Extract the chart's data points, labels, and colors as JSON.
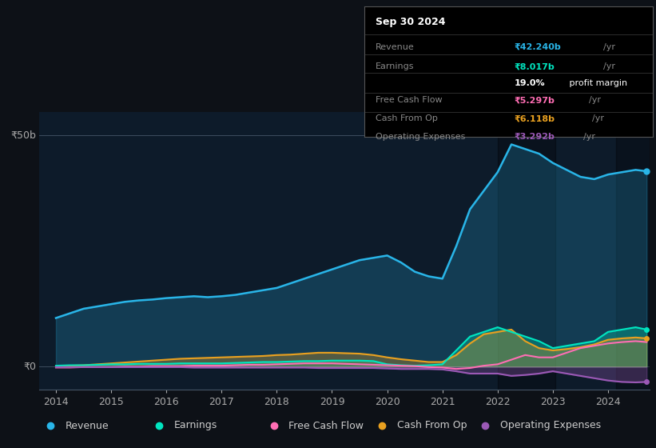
{
  "background_color": "#0d1117",
  "plot_bg_color": "#0d1b2a",
  "tooltip": {
    "date": "Sep 30 2024",
    "revenue_val": "₹42.240b",
    "earnings_val": "₹8.017b",
    "profit_margin": "19.0%",
    "fcf_val": "₹5.297b",
    "cashop_val": "₹6.118b",
    "opex_val": "₹3.292b"
  },
  "ylabel_50b": "₹50b",
  "ylabel_0": "₹0",
  "colors": {
    "revenue": "#29b5e8",
    "earnings": "#00e5c0",
    "fcf": "#ff6eb4",
    "cashop": "#e8a020",
    "opex": "#9b59b6"
  },
  "legend": [
    {
      "label": "Revenue",
      "color": "#29b5e8"
    },
    {
      "label": "Earnings",
      "color": "#00e5c0"
    },
    {
      "label": "Free Cash Flow",
      "color": "#ff6eb4"
    },
    {
      "label": "Cash From Op",
      "color": "#e8a020"
    },
    {
      "label": "Operating Expenses",
      "color": "#9b59b6"
    }
  ],
  "x_ticks": [
    2014,
    2015,
    2016,
    2017,
    2018,
    2019,
    2020,
    2021,
    2022,
    2023,
    2024
  ],
  "revenue": {
    "x": [
      2014.0,
      2014.25,
      2014.5,
      2014.75,
      2015.0,
      2015.25,
      2015.5,
      2015.75,
      2016.0,
      2016.25,
      2016.5,
      2016.75,
      2017.0,
      2017.25,
      2017.5,
      2017.75,
      2018.0,
      2018.25,
      2018.5,
      2018.75,
      2019.0,
      2019.25,
      2019.5,
      2019.75,
      2020.0,
      2020.25,
      2020.5,
      2020.75,
      2021.0,
      2021.25,
      2021.5,
      2021.75,
      2022.0,
      2022.25,
      2022.5,
      2022.75,
      2023.0,
      2023.25,
      2023.5,
      2023.75,
      2024.0,
      2024.25,
      2024.5,
      2024.7
    ],
    "y": [
      10.5,
      11.5,
      12.5,
      13.0,
      13.5,
      14.0,
      14.3,
      14.5,
      14.8,
      15.0,
      15.2,
      15.0,
      15.2,
      15.5,
      16.0,
      16.5,
      17.0,
      18.0,
      19.0,
      20.0,
      21.0,
      22.0,
      23.0,
      23.5,
      24.0,
      22.5,
      20.5,
      19.5,
      19.0,
      26.0,
      34.0,
      38.0,
      42.0,
      48.0,
      47.0,
      46.0,
      44.0,
      42.5,
      41.0,
      40.5,
      41.5,
      42.0,
      42.5,
      42.2
    ]
  },
  "earnings": {
    "x": [
      2014.0,
      2014.25,
      2014.5,
      2014.75,
      2015.0,
      2015.25,
      2015.5,
      2015.75,
      2016.0,
      2016.25,
      2016.5,
      2016.75,
      2017.0,
      2017.25,
      2017.5,
      2017.75,
      2018.0,
      2018.25,
      2018.5,
      2018.75,
      2019.0,
      2019.25,
      2019.5,
      2019.75,
      2020.0,
      2020.25,
      2020.5,
      2020.75,
      2021.0,
      2021.25,
      2021.5,
      2021.75,
      2022.0,
      2022.25,
      2022.5,
      2022.75,
      2023.0,
      2023.25,
      2023.5,
      2023.75,
      2024.0,
      2024.25,
      2024.5,
      2024.7
    ],
    "y": [
      0.2,
      0.3,
      0.3,
      0.4,
      0.5,
      0.5,
      0.6,
      0.6,
      0.6,
      0.7,
      0.7,
      0.7,
      0.7,
      0.8,
      0.9,
      1.0,
      1.0,
      1.1,
      1.2,
      1.2,
      1.3,
      1.3,
      1.3,
      1.2,
      0.5,
      0.3,
      0.2,
      0.3,
      0.5,
      3.5,
      6.5,
      7.5,
      8.5,
      7.5,
      6.5,
      5.5,
      4.0,
      4.5,
      5.0,
      5.5,
      7.5,
      8.0,
      8.5,
      8.0
    ]
  },
  "fcf": {
    "x": [
      2014.0,
      2014.25,
      2014.5,
      2014.75,
      2015.0,
      2015.25,
      2015.5,
      2015.75,
      2016.0,
      2016.25,
      2016.5,
      2016.75,
      2017.0,
      2017.25,
      2017.5,
      2017.75,
      2018.0,
      2018.25,
      2018.5,
      2018.75,
      2019.0,
      2019.25,
      2019.5,
      2019.75,
      2020.0,
      2020.25,
      2020.5,
      2020.75,
      2021.0,
      2021.25,
      2021.5,
      2021.75,
      2022.0,
      2022.25,
      2022.5,
      2022.75,
      2023.0,
      2023.25,
      2023.5,
      2023.75,
      2024.0,
      2024.25,
      2024.5,
      2024.7
    ],
    "y": [
      -0.2,
      -0.2,
      -0.1,
      -0.1,
      -0.1,
      0.0,
      0.0,
      0.1,
      0.1,
      0.1,
      0.2,
      0.2,
      0.2,
      0.3,
      0.4,
      0.4,
      0.5,
      0.6,
      0.7,
      0.7,
      0.7,
      0.6,
      0.5,
      0.4,
      0.3,
      0.2,
      0.1,
      -0.1,
      -0.2,
      -0.5,
      -0.3,
      0.2,
      0.5,
      1.5,
      2.5,
      2.0,
      2.0,
      3.0,
      4.0,
      4.5,
      5.0,
      5.3,
      5.5,
      5.3
    ]
  },
  "cashop": {
    "x": [
      2014.0,
      2014.25,
      2014.5,
      2014.75,
      2015.0,
      2015.25,
      2015.5,
      2015.75,
      2016.0,
      2016.25,
      2016.5,
      2016.75,
      2017.0,
      2017.25,
      2017.5,
      2017.75,
      2018.0,
      2018.25,
      2018.5,
      2018.75,
      2019.0,
      2019.25,
      2019.5,
      2019.75,
      2020.0,
      2020.25,
      2020.5,
      2020.75,
      2021.0,
      2021.25,
      2021.5,
      2021.75,
      2022.0,
      2022.25,
      2022.5,
      2022.75,
      2023.0,
      2023.25,
      2023.5,
      2023.75,
      2024.0,
      2024.25,
      2024.5,
      2024.7
    ],
    "y": [
      0.1,
      0.2,
      0.3,
      0.5,
      0.7,
      0.9,
      1.1,
      1.3,
      1.5,
      1.7,
      1.8,
      1.9,
      2.0,
      2.1,
      2.2,
      2.3,
      2.5,
      2.6,
      2.8,
      3.0,
      3.0,
      2.9,
      2.8,
      2.5,
      2.0,
      1.6,
      1.3,
      1.0,
      1.0,
      2.5,
      5.0,
      7.0,
      7.5,
      8.0,
      5.5,
      4.0,
      3.5,
      3.8,
      4.2,
      4.8,
      5.8,
      6.1,
      6.3,
      6.1
    ]
  },
  "opex": {
    "x": [
      2014.0,
      2014.25,
      2014.5,
      2014.75,
      2015.0,
      2015.25,
      2015.5,
      2015.75,
      2016.0,
      2016.25,
      2016.5,
      2016.75,
      2017.0,
      2017.25,
      2017.5,
      2017.75,
      2018.0,
      2018.25,
      2018.5,
      2018.75,
      2019.0,
      2019.25,
      2019.5,
      2019.75,
      2020.0,
      2020.25,
      2020.5,
      2020.75,
      2021.0,
      2021.25,
      2021.5,
      2021.75,
      2022.0,
      2022.25,
      2022.5,
      2022.75,
      2023.0,
      2023.25,
      2023.5,
      2023.75,
      2024.0,
      2024.25,
      2024.5,
      2024.7
    ],
    "y": [
      -0.1,
      -0.1,
      -0.1,
      -0.1,
      -0.1,
      -0.1,
      -0.1,
      -0.1,
      -0.1,
      -0.1,
      -0.2,
      -0.2,
      -0.2,
      -0.2,
      -0.2,
      -0.2,
      -0.2,
      -0.2,
      -0.2,
      -0.3,
      -0.3,
      -0.3,
      -0.3,
      -0.3,
      -0.4,
      -0.5,
      -0.5,
      -0.5,
      -0.6,
      -1.0,
      -1.5,
      -1.5,
      -1.5,
      -2.0,
      -1.8,
      -1.5,
      -1.0,
      -1.5,
      -2.0,
      -2.5,
      -3.0,
      -3.3,
      -3.4,
      -3.3
    ]
  }
}
